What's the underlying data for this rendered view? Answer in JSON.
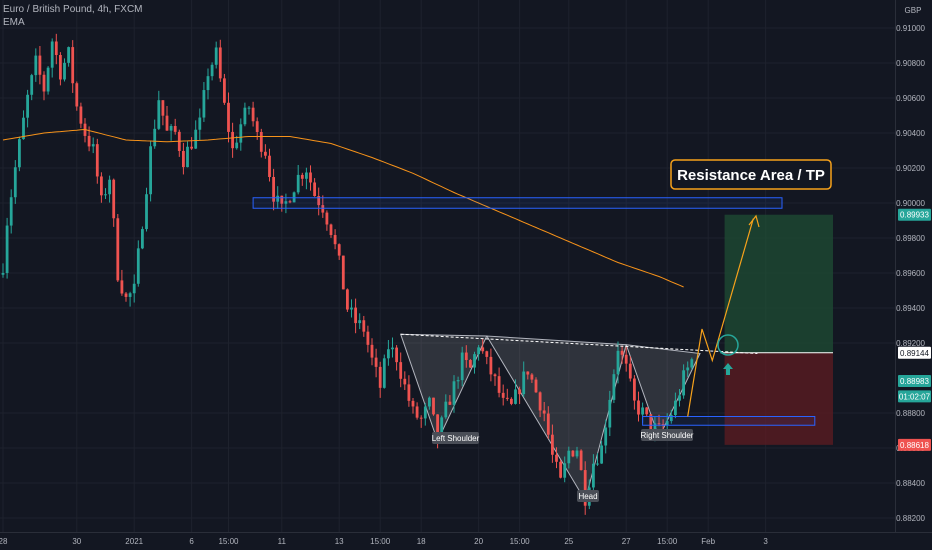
{
  "header": {
    "symbol_line": "Euro / British Pound, 4h, FXCM",
    "indicator": "EMA"
  },
  "price_axis": {
    "currency": "GBP",
    "ticks": [
      "0.91000",
      "0.90800",
      "0.90600",
      "0.90400",
      "0.90200",
      "0.90000",
      "0.89800",
      "0.89600",
      "0.89400",
      "0.89200",
      "0.88800",
      "0.88600",
      "0.88400",
      "0.88200"
    ],
    "tick_values": [
      0.91,
      0.908,
      0.906,
      0.904,
      0.902,
      0.9,
      0.898,
      0.896,
      0.894,
      0.892,
      0.888,
      0.886,
      0.884,
      0.882
    ],
    "labels": [
      {
        "text": "0.89933",
        "value": 0.89933,
        "bg": "#26a69a",
        "fg": "#ffffff"
      },
      {
        "text": "0.89144",
        "value": 0.89144,
        "bg": "#ffffff",
        "fg": "#131722"
      },
      {
        "text": "0.88983",
        "value": 0.88983,
        "bg": "#26a69a",
        "fg": "#ffffff"
      },
      {
        "text": "01:02:07",
        "value": 0.88895,
        "bg": "#26a69a",
        "fg": "#ffffff"
      },
      {
        "text": "0.88618",
        "value": 0.88618,
        "bg": "#ef5350",
        "fg": "#ffffff"
      }
    ]
  },
  "time_axis": {
    "ticks": [
      "28",
      "30",
      "2021",
      "6",
      "15:00",
      "11",
      "13",
      "15:00",
      "18",
      "20",
      "15:00",
      "25",
      "27",
      "15:00",
      "Feb",
      "3"
    ],
    "tick_bars": [
      0,
      18,
      32,
      46,
      55,
      68,
      82,
      92,
      102,
      116,
      126,
      138,
      152,
      162,
      172,
      186
    ]
  },
  "annotations": {
    "resistance_label": "Resistance Area / TP",
    "left_shoulder": "Left Shoulder",
    "head": "Head",
    "right_shoulder": "Right Shoulder"
  },
  "colors": {
    "background": "#131722",
    "up": "#26a69a",
    "down": "#ef5350",
    "ema": "#f7931a",
    "box_stroke": "#2962ff",
    "callout_border": "#f7a21b"
  },
  "chart_data": {
    "type": "candlestick",
    "ylim": [
      0.8812,
      0.9116
    ],
    "bar_count": 190,
    "key_levels": {
      "resistance_zone": [
        0.8997,
        0.9003
      ],
      "neckline_start": 0.8925,
      "neckline_end": 0.8914,
      "support_zone": [
        0.8873,
        0.8878
      ],
      "take_profit": 0.89933,
      "entry": 0.89144,
      "stop": 0.88618
    },
    "pattern_points": {
      "left_shoulder_low": 0.8864,
      "head_low": 0.883,
      "right_shoulder_low": 0.8866,
      "neck_peak_left": 0.8924,
      "neck_peak_right": 0.8919
    },
    "anchors": [
      [
        0,
        0.8965
      ],
      [
        1,
        0.899
      ],
      [
        3,
        0.902
      ],
      [
        6,
        0.906
      ],
      [
        8,
        0.908
      ],
      [
        10,
        0.9065
      ],
      [
        12,
        0.9093
      ],
      [
        14,
        0.9075
      ],
      [
        16,
        0.9085
      ],
      [
        18,
        0.9055
      ],
      [
        20,
        0.904
      ],
      [
        22,
        0.903
      ],
      [
        24,
        0.9
      ],
      [
        26,
        0.9015
      ],
      [
        28,
        0.896
      ],
      [
        30,
        0.8945
      ],
      [
        32,
        0.895
      ],
      [
        34,
        0.899
      ],
      [
        36,
        0.903
      ],
      [
        38,
        0.906
      ],
      [
        40,
        0.904
      ],
      [
        42,
        0.904
      ],
      [
        44,
        0.9025
      ],
      [
        46,
        0.9035
      ],
      [
        48,
        0.9045
      ],
      [
        50,
        0.9075
      ],
      [
        52,
        0.9085
      ],
      [
        54,
        0.9055
      ],
      [
        56,
        0.903
      ],
      [
        58,
        0.9045
      ],
      [
        60,
        0.9055
      ],
      [
        62,
        0.9038
      ],
      [
        64,
        0.903
      ],
      [
        66,
        0.9005
      ],
      [
        68,
        0.8995
      ],
      [
        70,
        0.9005
      ],
      [
        72,
        0.9015
      ],
      [
        74,
        0.902
      ],
      [
        76,
        0.9005
      ],
      [
        78,
        0.8998
      ],
      [
        80,
        0.8985
      ],
      [
        82,
        0.8965
      ],
      [
        84,
        0.894
      ],
      [
        86,
        0.8932
      ],
      [
        88,
        0.8928
      ],
      [
        90,
        0.891
      ],
      [
        92,
        0.8895
      ],
      [
        94,
        0.8918
      ],
      [
        96,
        0.8912
      ],
      [
        98,
        0.8895
      ],
      [
        100,
        0.888
      ],
      [
        102,
        0.8876
      ],
      [
        104,
        0.8885
      ],
      [
        106,
        0.8865
      ],
      [
        108,
        0.8882
      ],
      [
        110,
        0.8895
      ],
      [
        112,
        0.891
      ],
      [
        114,
        0.8905
      ],
      [
        116,
        0.892
      ],
      [
        118,
        0.8908
      ],
      [
        120,
        0.8898
      ],
      [
        122,
        0.8885
      ],
      [
        124,
        0.8883
      ],
      [
        126,
        0.8895
      ],
      [
        128,
        0.8905
      ],
      [
        130,
        0.8892
      ],
      [
        132,
        0.888
      ],
      [
        134,
        0.8855
      ],
      [
        136,
        0.884
      ],
      [
        138,
        0.8858
      ],
      [
        140,
        0.886
      ],
      [
        142,
        0.8832
      ],
      [
        144,
        0.8852
      ],
      [
        146,
        0.886
      ],
      [
        148,
        0.889
      ],
      [
        150,
        0.8918
      ],
      [
        152,
        0.8905
      ],
      [
        154,
        0.8885
      ],
      [
        156,
        0.888
      ],
      [
        158,
        0.8872
      ],
      [
        160,
        0.887
      ],
      [
        162,
        0.8875
      ],
      [
        164,
        0.8885
      ],
      [
        166,
        0.89
      ],
      [
        168,
        0.891
      ]
    ],
    "ema_anchors": [
      [
        0,
        0.9036
      ],
      [
        10,
        0.904
      ],
      [
        20,
        0.9042
      ],
      [
        30,
        0.9036
      ],
      [
        40,
        0.9035
      ],
      [
        50,
        0.9036
      ],
      [
        60,
        0.9038
      ],
      [
        70,
        0.9038
      ],
      [
        80,
        0.9034
      ],
      [
        90,
        0.9026
      ],
      [
        100,
        0.9017
      ],
      [
        110,
        0.9006
      ],
      [
        120,
        0.8996
      ],
      [
        130,
        0.8986
      ],
      [
        140,
        0.8976
      ],
      [
        150,
        0.8966
      ],
      [
        160,
        0.8958
      ],
      [
        166,
        0.8952
      ]
    ]
  }
}
